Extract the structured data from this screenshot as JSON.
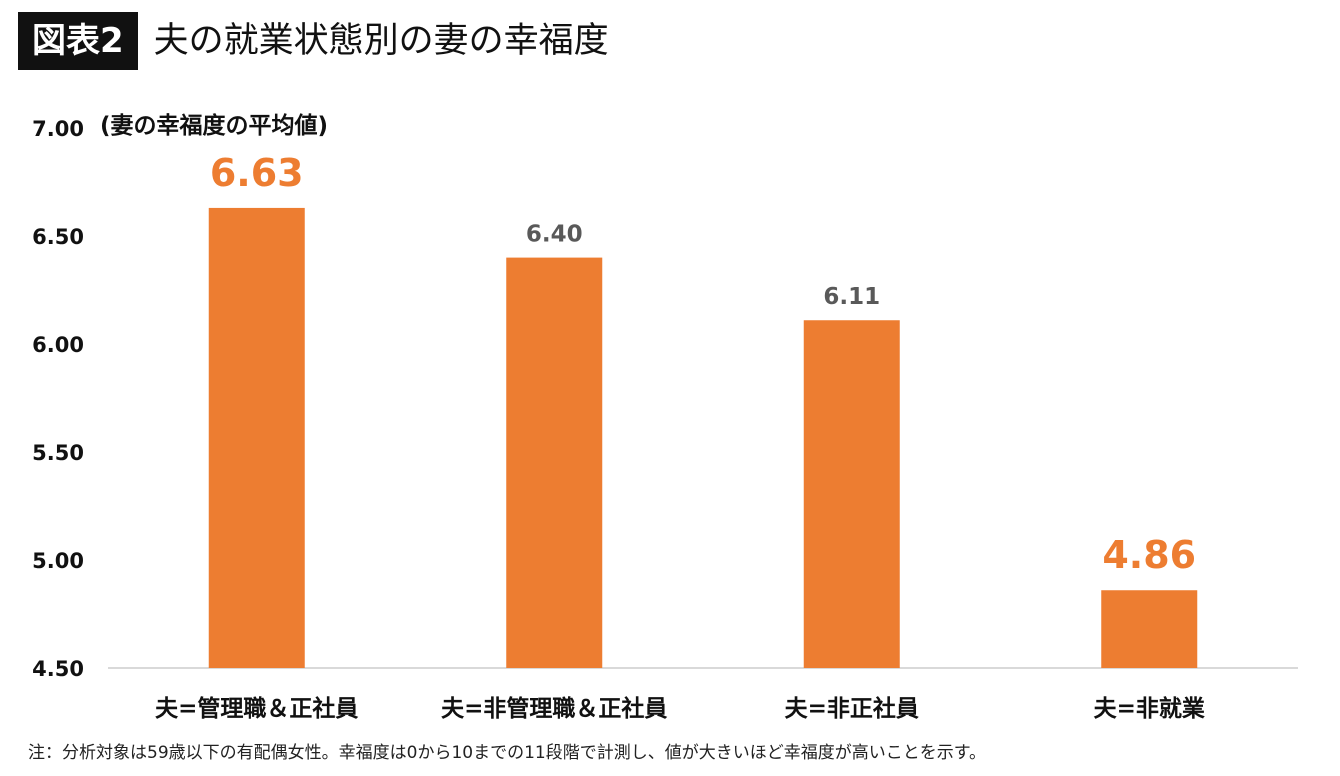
{
  "header": {
    "badge": "図表2",
    "title": "夫の就業状態別の妻の幸福度"
  },
  "note": "注：分析対象は59歳以下の有配偶女性。幸福度は0から10までの11段階で計測し、値が大きいほど幸福度が高いことを示す。",
  "colors": {
    "bar": "#ED7D31",
    "highlight_label": "#ED7D31",
    "normal_label": "#595959",
    "axis_line": "#D9D9D9"
  },
  "chart_data": {
    "type": "bar",
    "title": "夫の就業状態別の妻の幸福度",
    "ylabel": "(妻の幸福度の平均値)",
    "xlabel": "",
    "categories": [
      "夫=管理職＆正社員",
      "夫=非管理職＆正社員",
      "夫=非正社員",
      "夫=非就業"
    ],
    "values": [
      6.63,
      6.4,
      6.11,
      4.86
    ],
    "value_labels": [
      "6.63",
      "6.40",
      "6.11",
      "4.86"
    ],
    "highlighted": [
      true,
      false,
      false,
      true
    ],
    "ylim": [
      4.5,
      7.0
    ],
    "yticks": [
      "4.50",
      "5.00",
      "5.50",
      "6.00",
      "6.50",
      "7.00"
    ],
    "ytick_values": [
      4.5,
      5.0,
      5.5,
      6.0,
      6.5,
      7.0
    ],
    "grid": false,
    "legend": "none"
  }
}
